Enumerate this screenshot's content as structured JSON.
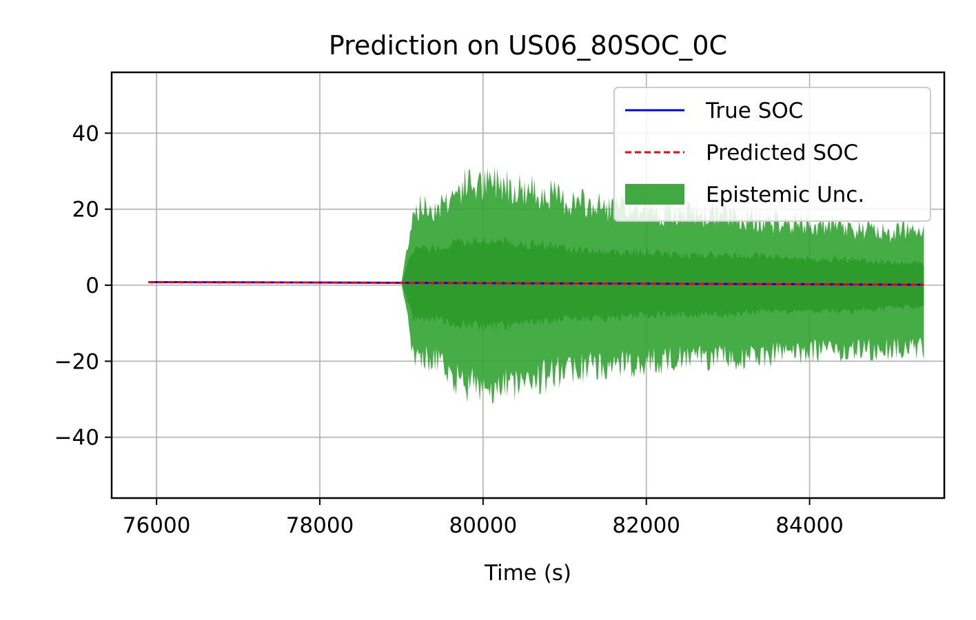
{
  "chart_data": {
    "type": "line",
    "title": "Prediction on US06_80SOC_0C",
    "xlabel": "Time (s)",
    "ylabel": "",
    "xlim": [
      75450,
      85650
    ],
    "ylim": [
      -56,
      56
    ],
    "xticks": [
      76000,
      78000,
      80000,
      82000,
      84000
    ],
    "yticks": [
      40,
      20,
      0,
      -20,
      -40
    ],
    "ytick_labels": [
      "40",
      "20",
      "0",
      "−20",
      "−40"
    ],
    "grid": true,
    "legend_position": "upper right",
    "legend": [
      {
        "label": "True SOC",
        "style": "solid",
        "color": "#0000ff"
      },
      {
        "label": "Predicted SOC",
        "style": "dashed",
        "color": "#ff0000"
      },
      {
        "label": "Epistemic Unc.",
        "style": "fill",
        "color": "#2ca02c"
      }
    ],
    "series": [
      {
        "name": "True SOC",
        "color": "#0000ff",
        "x": [
          75900,
          78000,
          80000,
          82000,
          84000,
          85400
        ],
        "y": [
          0.8,
          0.7,
          0.55,
          0.4,
          0.25,
          0.1
        ]
      },
      {
        "name": "Predicted SOC",
        "color": "#ff0000",
        "x": [
          75900,
          78000,
          80000,
          82000,
          84000,
          85400
        ],
        "y": [
          0.8,
          0.7,
          0.55,
          0.4,
          0.25,
          0.1
        ]
      }
    ],
    "uncertainty_band": {
      "name": "Epistemic Unc.",
      "color": "#2ca02c",
      "x": [
        75900,
        79000,
        79150,
        79300,
        79400,
        79600,
        79800,
        80000,
        80200,
        80500,
        80800,
        81000,
        81500,
        82000,
        82500,
        83000,
        83500,
        84000,
        84500,
        85000,
        85400
      ],
      "upper": [
        0.8,
        0.7,
        22,
        22,
        22,
        25,
        29,
        28,
        30,
        27,
        26,
        24,
        22,
        21,
        20,
        20,
        18,
        17,
        16,
        15,
        17
      ],
      "lower": [
        0.8,
        0.7,
        -20,
        -21,
        -21,
        -25,
        -29,
        -28,
        -30,
        -27,
        -26,
        -24,
        -23,
        -22,
        -21,
        -21,
        -20,
        -19,
        -19,
        -18,
        -18
      ],
      "inner_upper": [
        0.8,
        0.7,
        10,
        10,
        10,
        11,
        12,
        12,
        12,
        11,
        11,
        10,
        9,
        9,
        8,
        8,
        8,
        7,
        7,
        6,
        6
      ],
      "inner_lower": [
        0.8,
        0.7,
        -9,
        -9,
        -9,
        -10,
        -11,
        -11,
        -11,
        -10,
        -10,
        -9,
        -9,
        -8,
        -8,
        -8,
        -7,
        -7,
        -7,
        -6,
        -6
      ]
    }
  }
}
